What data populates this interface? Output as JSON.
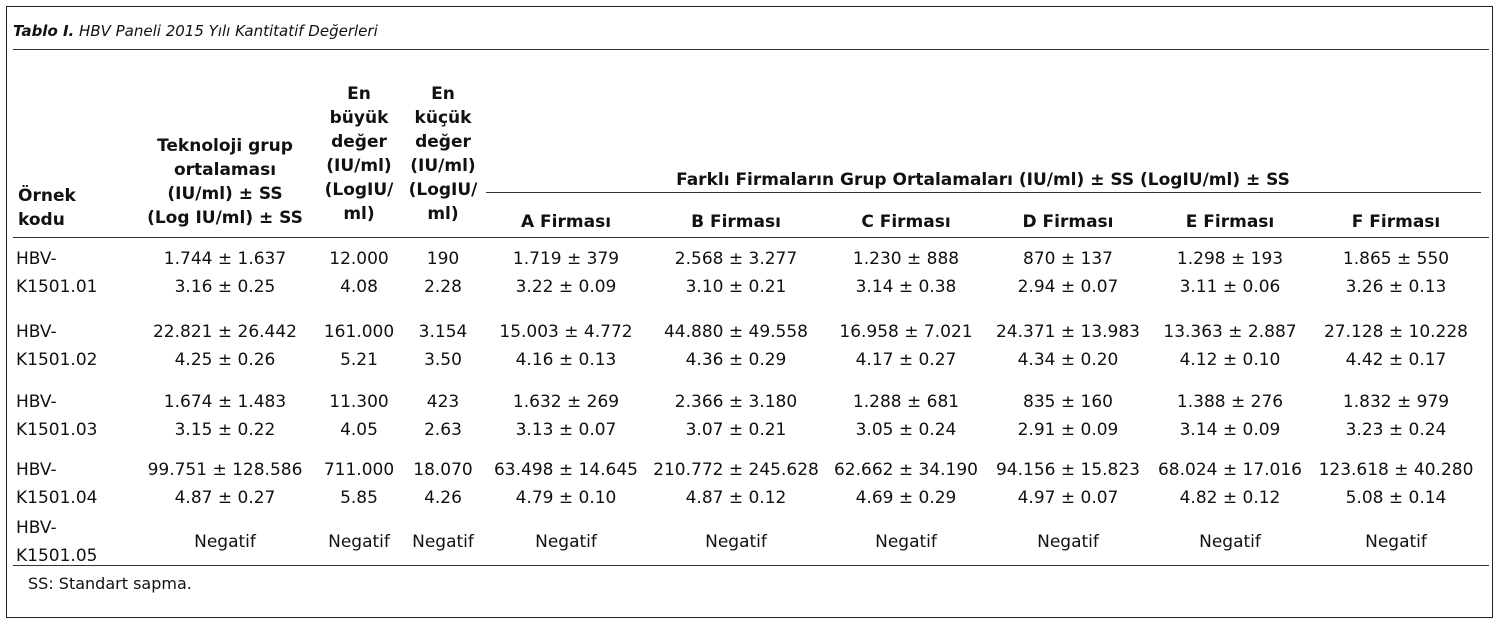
{
  "caption": {
    "label": "Tablo I.",
    "text": " HBV Paneli 2015 Yılı Kantitatif Değerleri"
  },
  "headers": {
    "col1": [
      "Örnek",
      "kodu"
    ],
    "col2": [
      "Teknoloji grup",
      "ortalaması",
      "(IU/ml) ± SS",
      "(Log IU/ml) ± SS"
    ],
    "col3": [
      "En",
      "büyük",
      "değer",
      "(IU/ml)",
      "(LogIU/",
      "ml)"
    ],
    "col4": [
      "En",
      "küçük",
      "değer",
      "(IU/ml)",
      "(LogIU/",
      "ml)"
    ],
    "group": "Farklı Firmaların Grup Ortalamaları (IU/ml) ± SS (LogIU/ml) ± SS",
    "firms": [
      "A Firması",
      "B Firması",
      "C Firması",
      "D Firması",
      "E Firması",
      "F Firması"
    ]
  },
  "rows": [
    {
      "code": [
        "HBV-",
        "K1501.01"
      ],
      "cells": [
        [
          "1.744 ± 1.637",
          "3.16 ± 0.25"
        ],
        [
          "12.000",
          "4.08"
        ],
        [
          "190",
          "2.28"
        ],
        [
          "1.719 ± 379",
          "3.22 ± 0.09"
        ],
        [
          "2.568 ± 3.277",
          "3.10 ± 0.21"
        ],
        [
          "1.230 ± 888",
          "3.14 ± 0.38"
        ],
        [
          "870 ± 137",
          "2.94 ± 0.07"
        ],
        [
          "1.298 ± 193",
          "3.11 ± 0.06"
        ],
        [
          "1.865 ± 550",
          "3.26 ± 0.13"
        ]
      ]
    },
    {
      "code": [
        "HBV-",
        "K1501.02"
      ],
      "cells": [
        [
          "22.821 ± 26.442",
          "4.25 ± 0.26"
        ],
        [
          "161.000",
          "5.21"
        ],
        [
          "3.154",
          "3.50"
        ],
        [
          "15.003 ± 4.772",
          "4.16 ± 0.13"
        ],
        [
          "44.880 ± 49.558",
          "4.36 ± 0.29"
        ],
        [
          "16.958 ± 7.021",
          "4.17 ± 0.27"
        ],
        [
          "24.371 ± 13.983",
          "4.34 ± 0.20"
        ],
        [
          "13.363 ± 2.887",
          "4.12 ± 0.10"
        ],
        [
          "27.128 ± 10.228",
          "4.42 ± 0.17"
        ]
      ]
    },
    {
      "code": [
        "HBV-",
        "K1501.03"
      ],
      "cells": [
        [
          "1.674 ± 1.483",
          "3.15 ± 0.22"
        ],
        [
          "11.300",
          "4.05"
        ],
        [
          "423",
          "2.63"
        ],
        [
          "1.632 ± 269",
          "3.13 ± 0.07"
        ],
        [
          "2.366 ± 3.180",
          "3.07 ± 0.21"
        ],
        [
          "1.288 ± 681",
          "3.05 ± 0.24"
        ],
        [
          "835 ± 160",
          "2.91 ± 0.09"
        ],
        [
          "1.388 ± 276",
          "3.14 ± 0.09"
        ],
        [
          "1.832 ± 979",
          "3.23 ± 0.24"
        ]
      ]
    },
    {
      "code": [
        "HBV-",
        "K1501.04"
      ],
      "cells": [
        [
          "99.751 ± 128.586",
          "4.87 ± 0.27"
        ],
        [
          "711.000",
          "5.85"
        ],
        [
          "18.070",
          "4.26"
        ],
        [
          "63.498 ± 14.645",
          "4.79 ± 0.10"
        ],
        [
          "210.772 ± 245.628",
          "4.87 ± 0.12"
        ],
        [
          "62.662 ± 34.190",
          "4.69 ± 0.29"
        ],
        [
          "94.156 ± 15.823",
          "4.97 ± 0.07"
        ],
        [
          "68.024 ± 17.016",
          "4.82 ± 0.12"
        ],
        [
          "123.618 ± 40.280",
          "5.08 ± 0.14"
        ]
      ]
    },
    {
      "code": [
        "HBV-",
        "K1501.05"
      ],
      "cells": [
        [
          "Negatif"
        ],
        [
          "Negatif"
        ],
        [
          "Negatif"
        ],
        [
          "Negatif"
        ],
        [
          "Negatif"
        ],
        [
          "Negatif"
        ],
        [
          "Negatif"
        ],
        [
          "Negatif"
        ],
        [
          "Negatif"
        ]
      ]
    }
  ],
  "footnote": "SS: Standart sapma."
}
